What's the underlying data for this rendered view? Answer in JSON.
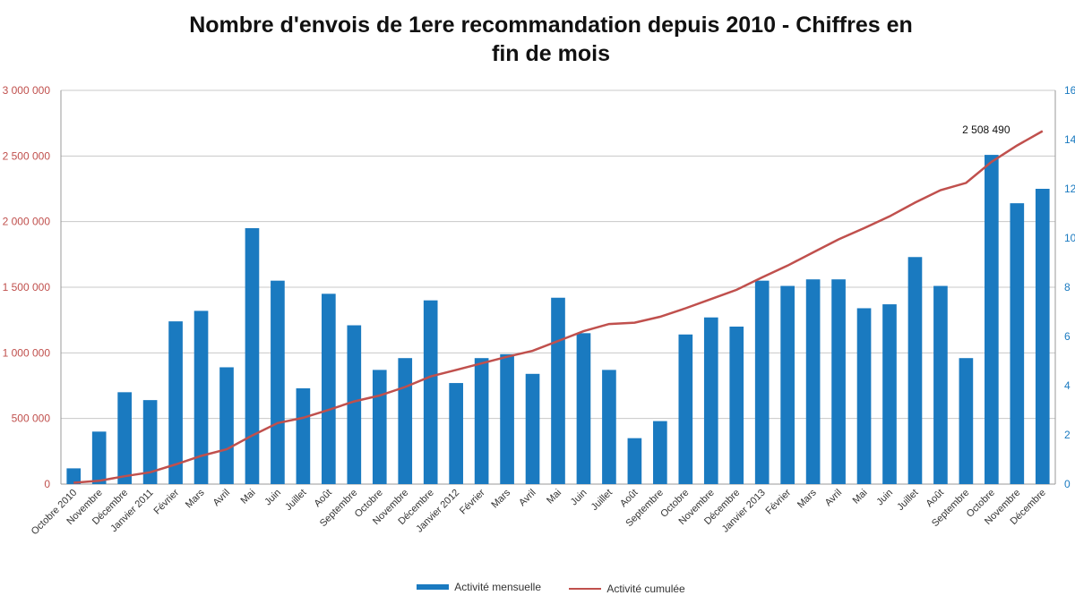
{
  "chart_data": {
    "type": "bar",
    "title_line1": "Nombre d'envois de 1ere recommandation depuis 2010 - Chiffres en",
    "title_line2": "fin de mois",
    "categories": [
      "Octobre 2010",
      "Novembre",
      "Décembre",
      "Janvier 2011",
      "Février",
      "Mars",
      "Avril",
      "Mai",
      "Juin",
      "Juillet",
      "Août",
      "Septembre",
      "Octobre",
      "Novembre",
      "Décembre",
      "Janvier 2012",
      "Février",
      "Mars",
      "Avril",
      "Mai",
      "Juin",
      "Juillet",
      "Août",
      "Septembre",
      "Octobre",
      "Novembre",
      "Décembre",
      "Janvier 2013",
      "Février",
      "Mars",
      "Avril",
      "Mai",
      "Juin",
      "Juillet",
      "Août",
      "Septembre",
      "Octobre",
      "Novembre",
      "Décembre"
    ],
    "series": [
      {
        "name": "Activité mensuelle",
        "type": "bar",
        "axis": "left",
        "color": "#1a7ac0",
        "values": [
          120000,
          400000,
          700000,
          640000,
          1240000,
          1320000,
          890000,
          1950000,
          1550000,
          730000,
          1450000,
          1210000,
          870000,
          960000,
          1400000,
          770000,
          960000,
          990000,
          840000,
          1420000,
          1150000,
          870000,
          350000,
          480000,
          1140000,
          1270000,
          1200000,
          1550000,
          1510000,
          1560000,
          1560000,
          1340000,
          1370000,
          1730000,
          1510000,
          960000,
          2508490,
          2140000,
          2250000
        ]
      },
      {
        "name": "Activité cumulée",
        "type": "line",
        "axis": "right",
        "color": "#c0504d",
        "values": [
          20000,
          50000,
          120000,
          180000,
          300000,
          430000,
          530000,
          740000,
          930000,
          1010000,
          1130000,
          1260000,
          1350000,
          1480000,
          1640000,
          1740000,
          1840000,
          1940000,
          2030000,
          2180000,
          2330000,
          2440000,
          2460000,
          2550000,
          2680000,
          2820000,
          2960000,
          3150000,
          3330000,
          3530000,
          3730000,
          3900000,
          4080000,
          4290000,
          4480000,
          4590000,
          4910000,
          5160000,
          5380000
        ]
      }
    ],
    "left_axis": {
      "ticks": [
        "0",
        "500 000",
        "1 000 000",
        "1 500 000",
        "2 000 000",
        "2 500 000",
        "3 000 000"
      ],
      "ylim": [
        0,
        3000000
      ]
    },
    "right_axis": {
      "ticks": [
        "0",
        "2",
        "4",
        "6",
        "8",
        "10",
        "12",
        "14",
        "16"
      ],
      "ylim": [
        0,
        16
      ],
      "tick_scale": 375000
    },
    "annotation": {
      "text": "2 508 490",
      "category_index": 36
    },
    "grid": true,
    "legend_position": "bottom"
  }
}
